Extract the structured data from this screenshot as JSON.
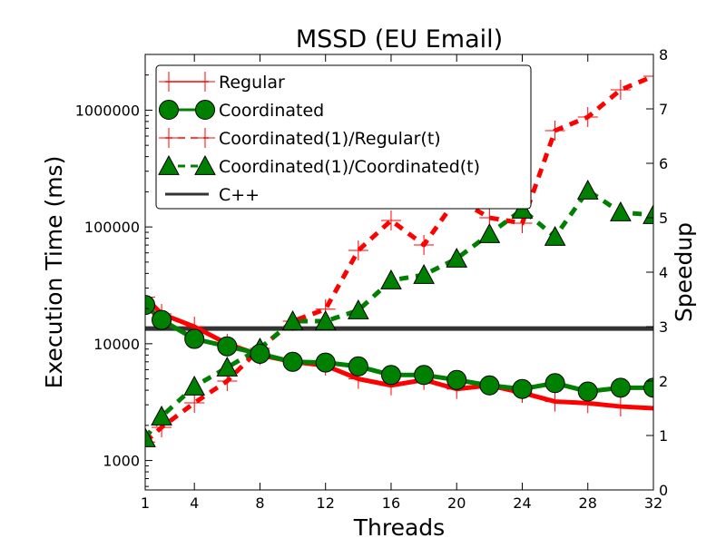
{
  "chart_data": {
    "type": "line",
    "title": "MSSD (EU Email)",
    "xlabel": "Threads",
    "ylabel_left": "Execution Time (ms)",
    "ylabel_right": "Speedup",
    "x_ticks": [
      "1",
      "4",
      "8",
      "12",
      "16",
      "20",
      "24",
      "28",
      "32"
    ],
    "x_tick_values": [
      1,
      4,
      8,
      12,
      16,
      20,
      24,
      28,
      32
    ],
    "xlim": [
      1,
      32
    ],
    "y_left_scale": "log",
    "y_left_ticks": [
      "1000",
      "10000",
      "100000",
      "1000000"
    ],
    "y_left_tick_values": [
      1000,
      10000,
      100000,
      1000000
    ],
    "y_left_lim": [
      560,
      3000000
    ],
    "y_right_ticks": [
      "0",
      "1",
      "2",
      "3",
      "4",
      "5",
      "6",
      "7",
      "8"
    ],
    "y_right_tick_values": [
      0,
      1,
      2,
      3,
      4,
      5,
      6,
      7,
      8
    ],
    "y_right_lim": [
      0,
      8
    ],
    "grid": false,
    "legend_position": "top-left",
    "series": [
      {
        "name": "Regular",
        "axis": "left",
        "color": "#ff0000",
        "line": "solid",
        "marker": "plus",
        "x": [
          1,
          2,
          4,
          6,
          8,
          10,
          12,
          14,
          16,
          18,
          20,
          22,
          24,
          26,
          28,
          30,
          32
        ],
        "y": [
          25000,
          18000,
          14000,
          10000,
          8000,
          7000,
          6500,
          5000,
          4400,
          4900,
          4100,
          4400,
          3800,
          3200,
          3100,
          2900,
          2800
        ]
      },
      {
        "name": "Coordinated",
        "axis": "left",
        "color": "#008000",
        "line": "solid",
        "marker": "circle",
        "x": [
          1,
          2,
          4,
          6,
          8,
          10,
          12,
          14,
          16,
          18,
          20,
          22,
          24,
          26,
          28,
          30,
          32
        ],
        "y": [
          21500,
          16000,
          11000,
          9500,
          8200,
          7000,
          6900,
          6400,
          5400,
          5400,
          4900,
          4400,
          4100,
          4600,
          3900,
          4200,
          4200
        ]
      },
      {
        "name": "Coordinated(1)/Regular(t)",
        "axis": "right",
        "color": "#ff0000",
        "line": "dashed",
        "marker": "plus",
        "x": [
          1,
          2,
          4,
          6,
          8,
          10,
          12,
          14,
          16,
          18,
          20,
          22,
          24,
          26,
          28,
          30,
          32
        ],
        "y": [
          0.88,
          1.15,
          1.6,
          2.0,
          2.6,
          3.1,
          3.32,
          4.4,
          4.95,
          4.5,
          5.35,
          5.0,
          4.9,
          6.6,
          6.85,
          7.35,
          7.6
        ]
      },
      {
        "name": "Coordinated(1)/Coordinated(t)",
        "axis": "right",
        "color": "#008000",
        "line": "dashed",
        "marker": "triangle",
        "x": [
          1,
          2,
          4,
          6,
          8,
          10,
          12,
          14,
          16,
          18,
          20,
          22,
          24,
          26,
          28,
          30,
          32
        ],
        "y": [
          0.95,
          1.35,
          1.9,
          2.25,
          2.6,
          3.1,
          3.1,
          3.3,
          3.85,
          3.95,
          4.25,
          4.7,
          5.15,
          4.65,
          5.5,
          5.1,
          5.05
        ]
      },
      {
        "name": "C++",
        "axis": "left",
        "color": "#333333",
        "line": "solid",
        "marker": "none",
        "x": [
          1,
          32
        ],
        "y": [
          13500,
          13500
        ]
      }
    ]
  }
}
